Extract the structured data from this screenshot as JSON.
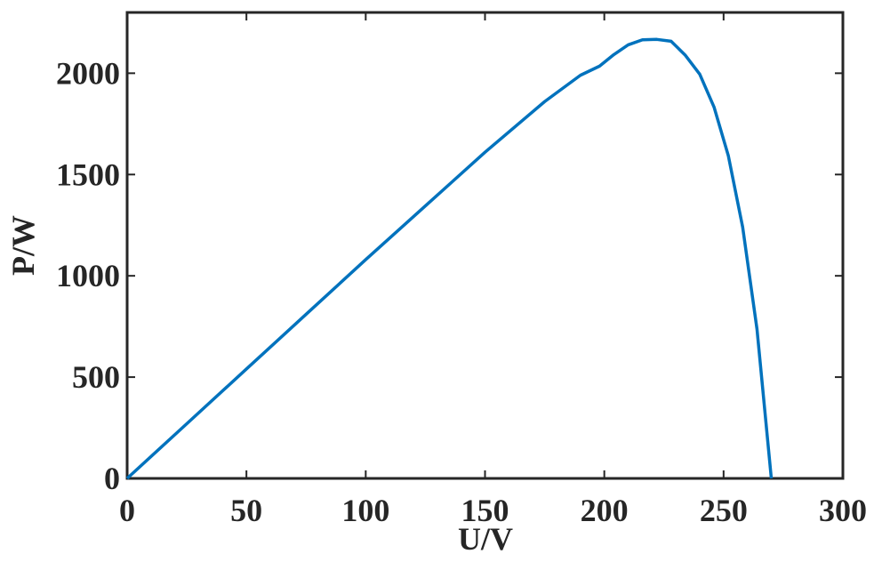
{
  "chart_data": {
    "type": "line",
    "x_label": "U/V",
    "y_label": "P/W",
    "x": [
      0,
      25,
      50,
      75,
      100,
      125,
      150,
      175,
      190,
      198,
      204,
      210,
      216,
      222,
      228,
      234,
      240,
      246,
      252,
      258,
      264,
      270
    ],
    "series": [
      {
        "name": "P",
        "color": "#0072bd",
        "values": [
          0,
          270,
          540,
          810,
          1080,
          1345,
          1610,
          1860,
          1990,
          2035,
          2092,
          2140,
          2165,
          2167,
          2158,
          2088,
          1995,
          1833,
          1592,
          1240,
          737,
          0
        ]
      }
    ],
    "xlim": [
      0,
      300
    ],
    "xticks": [
      0,
      50,
      100,
      150,
      200,
      250,
      300
    ],
    "ylim": [
      0,
      2300
    ],
    "yticks": [
      0,
      500,
      1000,
      1500,
      2000
    ],
    "grid": false
  }
}
